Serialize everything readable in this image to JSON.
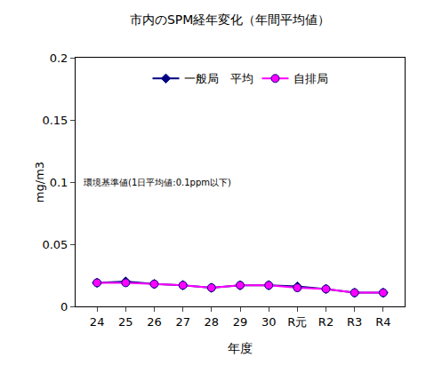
{
  "chart_data": {
    "type": "line",
    "title": "市内のSPM経年変化（年間平均値）",
    "x_label": "年度",
    "y_label": "mg/m3",
    "categories": [
      "24",
      "25",
      "26",
      "27",
      "28",
      "29",
      "30",
      "R元",
      "R2",
      "R3",
      "R4"
    ],
    "series": [
      {
        "name": "一般局　平均",
        "color": "#000080",
        "marker": "diamond",
        "line_style": "solid",
        "values": [
          0.019,
          0.02,
          0.018,
          0.017,
          0.015,
          0.017,
          0.017,
          0.016,
          0.014,
          0.011,
          0.011
        ]
      },
      {
        "name": "自排局",
        "color": "#ff00ff",
        "marker": "circle",
        "line_style": "solid",
        "values": [
          0.019,
          0.019,
          0.018,
          0.017,
          0.015,
          0.017,
          0.017,
          0.015,
          0.014,
          0.011,
          0.011
        ]
      }
    ],
    "ylim": [
      0,
      0.2
    ],
    "yticks": [
      0,
      0.05,
      0.1,
      0.15,
      0.2
    ],
    "grid": false,
    "legend": "top",
    "annotations": [
      {
        "text": "環境基準値(1日平均値:0.1ppm以下)"
      }
    ]
  }
}
